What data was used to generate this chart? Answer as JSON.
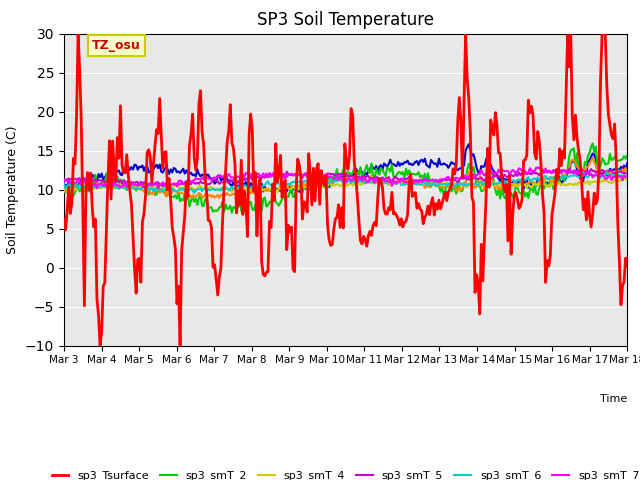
{
  "title": "SP3 Soil Temperature",
  "ylabel": "Soil Temperature (C)",
  "xlabel": "Time",
  "ylim": [
    -10,
    30
  ],
  "background_color": "#e8e8e8",
  "annotation_text": "TZ_osu",
  "annotation_color": "#cc0000",
  "annotation_bg": "#ffffcc",
  "annotation_border": "#cccc00",
  "xtick_labels": [
    "Mar 3",
    "Mar 4",
    "Mar 5",
    "Mar 6",
    "Mar 7",
    "Mar 8",
    "Mar 9",
    "Mar 10",
    "Mar 11",
    "Mar 12",
    "Mar 13",
    "Mar 14",
    "Mar 15",
    "Mar 16",
    "Mar 17",
    "Mar 18"
  ],
  "series": {
    "sp3_Tsurface": {
      "color": "#ff0000",
      "lw": 2.0
    },
    "sp3_smT_1": {
      "color": "#0000cc",
      "lw": 1.5
    },
    "sp3_smT_2": {
      "color": "#00cc00",
      "lw": 1.5
    },
    "sp3_smT_3": {
      "color": "#ff8800",
      "lw": 1.5
    },
    "sp3_smT_4": {
      "color": "#cccc00",
      "lw": 1.5
    },
    "sp3_smT_5": {
      "color": "#cc00cc",
      "lw": 1.5
    },
    "sp3_smT_6": {
      "color": "#00cccc",
      "lw": 1.5
    },
    "sp3_smT_7": {
      "color": "#ff00ff",
      "lw": 1.5
    }
  }
}
